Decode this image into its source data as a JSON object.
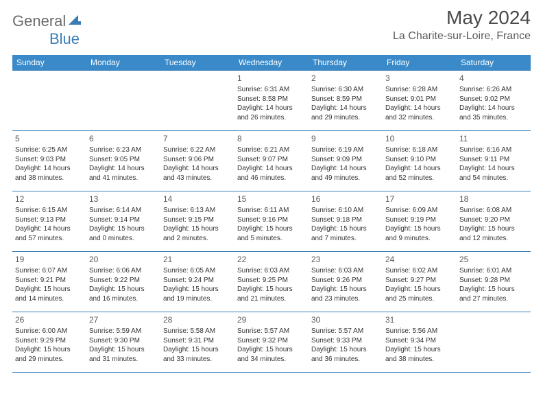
{
  "brand": {
    "word1": "General",
    "word2": "Blue"
  },
  "header": {
    "title": "May 2024",
    "location": "La Charite-sur-Loire, France"
  },
  "colors": {
    "header_bg": "#3a8ac9",
    "border": "#3a7db5",
    "logo_gray": "#6b6b6b",
    "logo_blue": "#3a7db5"
  },
  "weekdays": [
    "Sunday",
    "Monday",
    "Tuesday",
    "Wednesday",
    "Thursday",
    "Friday",
    "Saturday"
  ],
  "weeks": [
    [
      null,
      null,
      null,
      {
        "num": "1",
        "sunrise": "Sunrise: 6:31 AM",
        "sunset": "Sunset: 8:58 PM",
        "daylight": "Daylight: 14 hours and 26 minutes."
      },
      {
        "num": "2",
        "sunrise": "Sunrise: 6:30 AM",
        "sunset": "Sunset: 8:59 PM",
        "daylight": "Daylight: 14 hours and 29 minutes."
      },
      {
        "num": "3",
        "sunrise": "Sunrise: 6:28 AM",
        "sunset": "Sunset: 9:01 PM",
        "daylight": "Daylight: 14 hours and 32 minutes."
      },
      {
        "num": "4",
        "sunrise": "Sunrise: 6:26 AM",
        "sunset": "Sunset: 9:02 PM",
        "daylight": "Daylight: 14 hours and 35 minutes."
      }
    ],
    [
      {
        "num": "5",
        "sunrise": "Sunrise: 6:25 AM",
        "sunset": "Sunset: 9:03 PM",
        "daylight": "Daylight: 14 hours and 38 minutes."
      },
      {
        "num": "6",
        "sunrise": "Sunrise: 6:23 AM",
        "sunset": "Sunset: 9:05 PM",
        "daylight": "Daylight: 14 hours and 41 minutes."
      },
      {
        "num": "7",
        "sunrise": "Sunrise: 6:22 AM",
        "sunset": "Sunset: 9:06 PM",
        "daylight": "Daylight: 14 hours and 43 minutes."
      },
      {
        "num": "8",
        "sunrise": "Sunrise: 6:21 AM",
        "sunset": "Sunset: 9:07 PM",
        "daylight": "Daylight: 14 hours and 46 minutes."
      },
      {
        "num": "9",
        "sunrise": "Sunrise: 6:19 AM",
        "sunset": "Sunset: 9:09 PM",
        "daylight": "Daylight: 14 hours and 49 minutes."
      },
      {
        "num": "10",
        "sunrise": "Sunrise: 6:18 AM",
        "sunset": "Sunset: 9:10 PM",
        "daylight": "Daylight: 14 hours and 52 minutes."
      },
      {
        "num": "11",
        "sunrise": "Sunrise: 6:16 AM",
        "sunset": "Sunset: 9:11 PM",
        "daylight": "Daylight: 14 hours and 54 minutes."
      }
    ],
    [
      {
        "num": "12",
        "sunrise": "Sunrise: 6:15 AM",
        "sunset": "Sunset: 9:13 PM",
        "daylight": "Daylight: 14 hours and 57 minutes."
      },
      {
        "num": "13",
        "sunrise": "Sunrise: 6:14 AM",
        "sunset": "Sunset: 9:14 PM",
        "daylight": "Daylight: 15 hours and 0 minutes."
      },
      {
        "num": "14",
        "sunrise": "Sunrise: 6:13 AM",
        "sunset": "Sunset: 9:15 PM",
        "daylight": "Daylight: 15 hours and 2 minutes."
      },
      {
        "num": "15",
        "sunrise": "Sunrise: 6:11 AM",
        "sunset": "Sunset: 9:16 PM",
        "daylight": "Daylight: 15 hours and 5 minutes."
      },
      {
        "num": "16",
        "sunrise": "Sunrise: 6:10 AM",
        "sunset": "Sunset: 9:18 PM",
        "daylight": "Daylight: 15 hours and 7 minutes."
      },
      {
        "num": "17",
        "sunrise": "Sunrise: 6:09 AM",
        "sunset": "Sunset: 9:19 PM",
        "daylight": "Daylight: 15 hours and 9 minutes."
      },
      {
        "num": "18",
        "sunrise": "Sunrise: 6:08 AM",
        "sunset": "Sunset: 9:20 PM",
        "daylight": "Daylight: 15 hours and 12 minutes."
      }
    ],
    [
      {
        "num": "19",
        "sunrise": "Sunrise: 6:07 AM",
        "sunset": "Sunset: 9:21 PM",
        "daylight": "Daylight: 15 hours and 14 minutes."
      },
      {
        "num": "20",
        "sunrise": "Sunrise: 6:06 AM",
        "sunset": "Sunset: 9:22 PM",
        "daylight": "Daylight: 15 hours and 16 minutes."
      },
      {
        "num": "21",
        "sunrise": "Sunrise: 6:05 AM",
        "sunset": "Sunset: 9:24 PM",
        "daylight": "Daylight: 15 hours and 19 minutes."
      },
      {
        "num": "22",
        "sunrise": "Sunrise: 6:03 AM",
        "sunset": "Sunset: 9:25 PM",
        "daylight": "Daylight: 15 hours and 21 minutes."
      },
      {
        "num": "23",
        "sunrise": "Sunrise: 6:03 AM",
        "sunset": "Sunset: 9:26 PM",
        "daylight": "Daylight: 15 hours and 23 minutes."
      },
      {
        "num": "24",
        "sunrise": "Sunrise: 6:02 AM",
        "sunset": "Sunset: 9:27 PM",
        "daylight": "Daylight: 15 hours and 25 minutes."
      },
      {
        "num": "25",
        "sunrise": "Sunrise: 6:01 AM",
        "sunset": "Sunset: 9:28 PM",
        "daylight": "Daylight: 15 hours and 27 minutes."
      }
    ],
    [
      {
        "num": "26",
        "sunrise": "Sunrise: 6:00 AM",
        "sunset": "Sunset: 9:29 PM",
        "daylight": "Daylight: 15 hours and 29 minutes."
      },
      {
        "num": "27",
        "sunrise": "Sunrise: 5:59 AM",
        "sunset": "Sunset: 9:30 PM",
        "daylight": "Daylight: 15 hours and 31 minutes."
      },
      {
        "num": "28",
        "sunrise": "Sunrise: 5:58 AM",
        "sunset": "Sunset: 9:31 PM",
        "daylight": "Daylight: 15 hours and 33 minutes."
      },
      {
        "num": "29",
        "sunrise": "Sunrise: 5:57 AM",
        "sunset": "Sunset: 9:32 PM",
        "daylight": "Daylight: 15 hours and 34 minutes."
      },
      {
        "num": "30",
        "sunrise": "Sunrise: 5:57 AM",
        "sunset": "Sunset: 9:33 PM",
        "daylight": "Daylight: 15 hours and 36 minutes."
      },
      {
        "num": "31",
        "sunrise": "Sunrise: 5:56 AM",
        "sunset": "Sunset: 9:34 PM",
        "daylight": "Daylight: 15 hours and 38 minutes."
      },
      null
    ]
  ]
}
